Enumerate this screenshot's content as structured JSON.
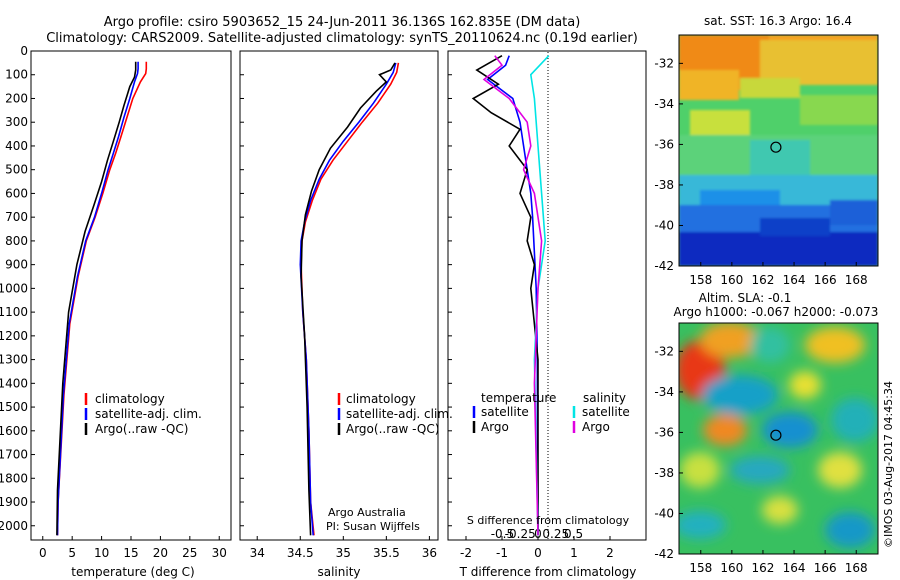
{
  "header": {
    "line1": "Argo profile: csiro 5903652_15 24-Jun-2011 36.136S 162.835E (DM data)",
    "line2": "Climatology: CARS2009. Satellite-adjusted climatology: synTS_20110624.nc (0.19d earlier)"
  },
  "colors": {
    "climatology": "#ff0000",
    "satellite": "#0000ff",
    "argo": "#000000",
    "sal_satellite": "#00e5e5",
    "sal_argo": "#e000e0"
  },
  "chart_data": [
    {
      "type": "line",
      "name": "temperature-profile",
      "xlabel": "temperature (deg C)",
      "ylabel": "",
      "xlim": [
        -2,
        32
      ],
      "ylim": [
        2060,
        0
      ],
      "xticks": [
        0,
        5,
        10,
        15,
        20,
        25,
        30
      ],
      "yticks": [
        0,
        100,
        200,
        300,
        400,
        500,
        600,
        700,
        800,
        900,
        1000,
        1100,
        1200,
        1300,
        1400,
        1500,
        1600,
        1700,
        1800,
        1900,
        2000
      ],
      "legend": [
        "climatology",
        "satellite-adj. clim.",
        "Argo(..raw -QC)"
      ],
      "series": [
        {
          "name": "climatology",
          "color": "#ff0000",
          "x": [
            17.6,
            17.6,
            17.5,
            16.6,
            15.3,
            14.3,
            13.3,
            12.4,
            11.4,
            10.2,
            8.9,
            7.4,
            6.0,
            4.6,
            3.6,
            2.6,
            2.5
          ],
          "y": [
            45,
            75,
            95,
            130,
            200,
            280,
            360,
            430,
            500,
            600,
            700,
            800,
            950,
            1150,
            1450,
            1900,
            2040
          ]
        },
        {
          "name": "satellite-adj. clim.",
          "color": "#0000ff",
          "x": [
            16.2,
            16.2,
            16.1,
            15.6,
            14.8,
            13.8,
            12.9,
            12.0,
            11.1,
            10.0,
            8.8,
            7.3,
            5.9,
            4.5,
            3.5,
            2.6,
            2.5
          ],
          "y": [
            45,
            75,
            95,
            130,
            200,
            280,
            360,
            430,
            500,
            600,
            700,
            800,
            950,
            1150,
            1450,
            1900,
            2040
          ]
        },
        {
          "name": "Argo(..raw -QC)",
          "color": "#000000",
          "x": [
            15.8,
            15.8,
            15.6,
            14.8,
            13.8,
            13.0,
            12.0,
            11.0,
            10.0,
            8.7,
            7.2,
            5.8,
            4.4,
            3.4,
            2.5,
            2.4
          ],
          "y": [
            45,
            80,
            110,
            150,
            230,
            300,
            380,
            460,
            550,
            650,
            760,
            900,
            1100,
            1400,
            1850,
            2040
          ]
        }
      ]
    },
    {
      "type": "line",
      "name": "salinity-profile",
      "xlabel": "salinity",
      "xlim": [
        33.8,
        36.1
      ],
      "ylim": [
        2060,
        0
      ],
      "xticks": [
        34,
        34.5,
        35,
        35.5,
        36
      ],
      "legend": [
        "climatology",
        "satellite-adj. clim.",
        "Argo(..raw -QC)"
      ],
      "annotation": [
        "Argo Australia",
        "PI: Susan Wijffels"
      ],
      "series": [
        {
          "name": "climatology",
          "color": "#ff0000",
          "x": [
            35.64,
            35.62,
            35.55,
            35.4,
            35.22,
            35.05,
            34.88,
            34.74,
            34.64,
            34.56,
            34.52,
            34.51,
            34.53,
            34.57,
            34.6,
            34.62,
            34.66
          ],
          "y": [
            50,
            90,
            140,
            220,
            300,
            380,
            460,
            540,
            630,
            720,
            800,
            900,
            1100,
            1300,
            1600,
            1900,
            2040
          ]
        },
        {
          "name": "satellite-adj. clim.",
          "color": "#0000ff",
          "x": [
            35.61,
            35.58,
            35.5,
            35.35,
            35.18,
            35.0,
            34.84,
            34.72,
            34.62,
            34.55,
            34.51,
            34.5,
            34.53,
            34.57,
            34.6,
            34.62,
            34.65
          ],
          "y": [
            50,
            90,
            140,
            220,
            300,
            380,
            460,
            540,
            630,
            720,
            800,
            900,
            1100,
            1300,
            1600,
            1900,
            2040
          ]
        },
        {
          "name": "Argo(..raw -QC)",
          "color": "#000000",
          "x": [
            35.6,
            35.55,
            35.42,
            35.5,
            35.38,
            35.2,
            35.05,
            34.85,
            34.72,
            34.63,
            34.56,
            34.52,
            34.51,
            34.55,
            34.58,
            34.6,
            34.62
          ],
          "y": [
            50,
            80,
            100,
            130,
            170,
            240,
            320,
            410,
            500,
            590,
            690,
            800,
            950,
            1200,
            1500,
            1850,
            2040
          ]
        }
      ]
    },
    {
      "type": "line",
      "name": "difference-profile",
      "xlabel": "T difference from climatology",
      "xlabel_top": "S difference from climatology",
      "xlim": [
        -2.5,
        3
      ],
      "xticks": [
        -2,
        -1,
        0,
        1,
        2
      ],
      "top_ticks": [
        "-0.5",
        "-0.25",
        "0",
        "0.25",
        "0.5"
      ],
      "ylim": [
        2060,
        0
      ],
      "legend_temperature": {
        "title": "temperature",
        "items": [
          "satellite",
          "Argo"
        ]
      },
      "legend_salinity": {
        "title": "salinity",
        "items": [
          "satellite",
          "Argo"
        ]
      },
      "series": [
        {
          "name": "temperature satellite",
          "color": "#0000ff",
          "x": [
            -0.8,
            -0.9,
            -1.4,
            -0.7,
            -0.5,
            -0.4,
            -0.3,
            -0.2,
            -0.15,
            -0.1,
            -0.05,
            -0.02,
            0.0
          ],
          "y": [
            20,
            60,
            120,
            200,
            300,
            400,
            500,
            600,
            700,
            850,
            1000,
            1300,
            2040
          ]
        },
        {
          "name": "temperature Argo",
          "color": "#000000",
          "x": [
            -1.0,
            -1.7,
            -1.1,
            -1.8,
            -1.3,
            -0.5,
            -0.8,
            -0.3,
            -0.5,
            -0.2,
            -0.3,
            -0.1,
            -0.2,
            0.0,
            0.0
          ],
          "y": [
            20,
            80,
            140,
            200,
            260,
            330,
            400,
            500,
            600,
            700,
            800,
            900,
            1000,
            1300,
            2040
          ]
        },
        {
          "name": "salinity satellite",
          "color": "#00e5e5",
          "x": [
            0.3,
            0.05,
            -0.2,
            -0.1,
            0.0,
            0.1,
            0.2,
            0.0,
            -0.1,
            0.0
          ],
          "y": [
            20,
            60,
            100,
            200,
            400,
            600,
            800,
            1000,
            1300,
            2040
          ]
        },
        {
          "name": "salinity Argo",
          "color": "#e000e0",
          "x": [
            -1.2,
            -1.0,
            -1.5,
            -0.8,
            -0.3,
            -0.2,
            -0.4,
            -0.1,
            0.1,
            0.0,
            -0.1,
            0.0
          ],
          "y": [
            20,
            60,
            120,
            200,
            300,
            400,
            500,
            600,
            800,
            1000,
            1400,
            2040
          ]
        }
      ]
    },
    {
      "type": "heatmap",
      "name": "sst-map",
      "title": "sat. SST: 16.3 Argo: 16.4",
      "xlim": [
        156.6,
        169.4
      ],
      "ylim": [
        -42,
        -30.6
      ],
      "xticks": [
        158,
        160,
        162,
        164,
        166,
        168
      ],
      "yticks": [
        -32,
        -34,
        -36,
        -38,
        -40,
        -42
      ],
      "marker": {
        "lon": 162.835,
        "lat": -36.136
      }
    },
    {
      "type": "heatmap",
      "name": "sla-map",
      "title": "Altim. SLA: -0.1",
      "subtitle": "Argo h1000: -0.067 h2000: -0.073",
      "xlim": [
        156.6,
        169.4
      ],
      "ylim": [
        -42,
        -30.6
      ],
      "xticks": [
        158,
        160,
        162,
        164,
        166,
        168
      ],
      "yticks": [
        -32,
        -34,
        -36,
        -38,
        -40,
        -42
      ],
      "marker": {
        "lon": 162.835,
        "lat": -36.136
      }
    }
  ],
  "stamp": "©IMOS 03-Aug-2017 04:45:34"
}
